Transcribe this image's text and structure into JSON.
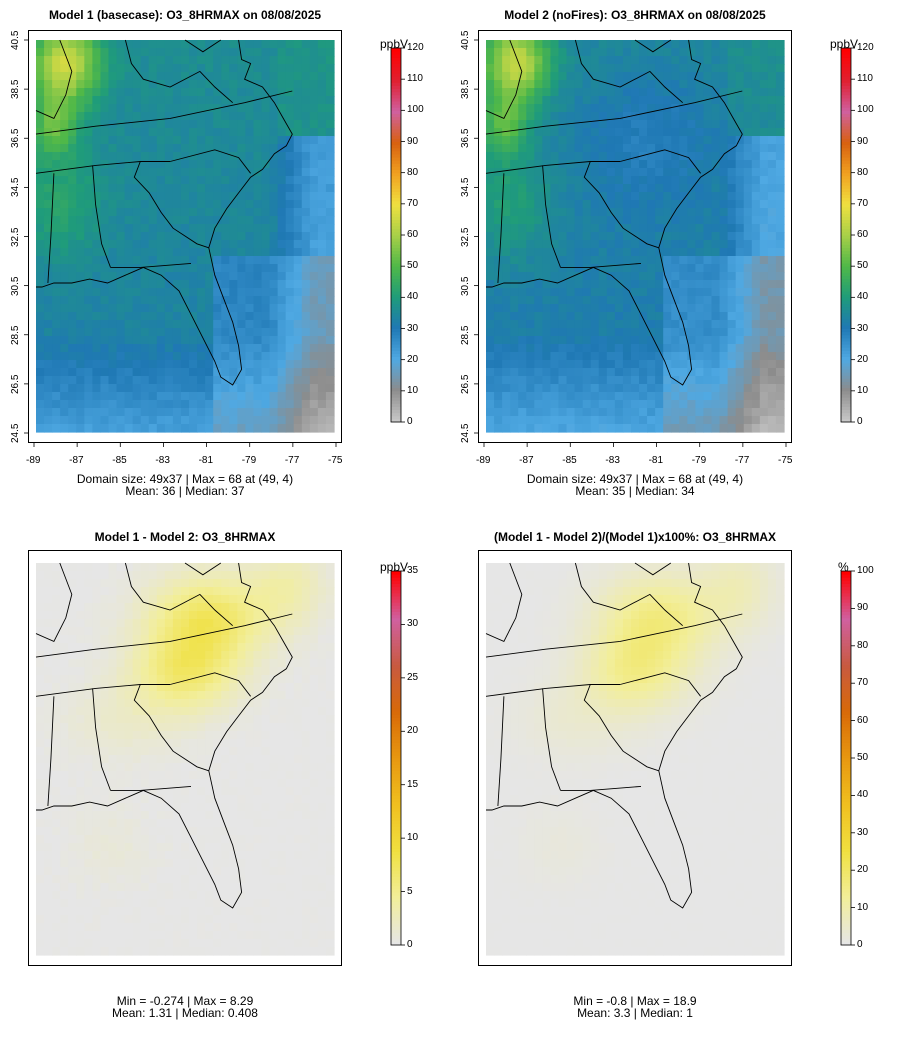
{
  "panels": [
    {
      "title": "Model 1 (basecase): O3_8HRMAX on 08/08/2025",
      "stats_line1": "Domain size: 49x37 | Max = 68 at (49, 4)",
      "stats_line2": "Mean: 36 |  Median: 37",
      "unit": "ppbV",
      "colorbar_ticks": [
        "0",
        "10",
        "20",
        "30",
        "40",
        "50",
        "60",
        "70",
        "80",
        "90",
        "100",
        "110",
        "120"
      ],
      "colorbar_max": 120,
      "palette": "concentration",
      "x_ticks": [
        "-89",
        "-87",
        "-85",
        "-83",
        "-81",
        "-79",
        "-77",
        "-75"
      ],
      "y_ticks": [
        "24.5",
        "26.5",
        "28.5",
        "30.5",
        "32.5",
        "34.5",
        "36.5",
        "38.5",
        "40.5"
      ]
    },
    {
      "title": "Model 2 (noFires): O3_8HRMAX on 08/08/2025",
      "stats_line1": "Domain size: 49x37 | Max = 68 at (49, 4)",
      "stats_line2": "Mean: 35 |  Median: 34",
      "unit": "ppbV",
      "colorbar_ticks": [
        "0",
        "10",
        "20",
        "30",
        "40",
        "50",
        "60",
        "70",
        "80",
        "90",
        "100",
        "110",
        "120"
      ],
      "colorbar_max": 120,
      "palette": "concentration",
      "x_ticks": [
        "-89",
        "-87",
        "-85",
        "-83",
        "-81",
        "-79",
        "-77",
        "-75"
      ],
      "y_ticks": [
        "24.5",
        "26.5",
        "28.5",
        "30.5",
        "32.5",
        "34.5",
        "36.5",
        "38.5",
        "40.5"
      ]
    },
    {
      "title": "Model 1 - Model 2: O3_8HRMAX",
      "stats_line1": "Min = -0.274 | Max = 8.29",
      "stats_line2": "Mean: 1.31 |  Median: 0.408",
      "unit": "ppbV",
      "colorbar_ticks": [
        "0",
        "5",
        "10",
        "15",
        "20",
        "25",
        "30",
        "35"
      ],
      "colorbar_max": 35,
      "palette": "difference"
    },
    {
      "title": "(Model 1 - Model 2)/(Model 1)x100%: O3_8HRMAX",
      "stats_line1": "Min = -0.8 | Max = 18.9",
      "stats_line2": "Mean: 3.3 |  Median: 1",
      "unit": "%",
      "colorbar_ticks": [
        "0",
        "10",
        "20",
        "30",
        "40",
        "50",
        "60",
        "70",
        "80",
        "90",
        "100"
      ],
      "colorbar_max": 100,
      "palette": "difference"
    }
  ],
  "colors": {
    "concentration_stops": [
      "#c8c8c8",
      "#8c8c8c",
      "#4fa9e3",
      "#1f78b4",
      "#1f9c7a",
      "#50b848",
      "#a8d048",
      "#f0e040",
      "#f0a020",
      "#d86010",
      "#d060a0",
      "#e02030",
      "#ff0000"
    ],
    "difference_stops": [
      "#e6e6e6",
      "#f2ee9a",
      "#f0e040",
      "#f0c020",
      "#e89810",
      "#d86a08",
      "#c85a40",
      "#d060a0",
      "#ff0000"
    ],
    "map_outline": "#000000"
  }
}
